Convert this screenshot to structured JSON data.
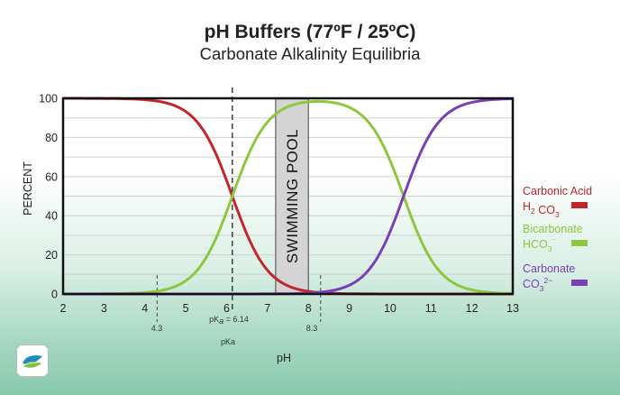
{
  "chart_data": {
    "type": "line",
    "title": "pH Buffers (77ºF / 25ºC)",
    "subtitle": "Carbonate Alkalinity Equilibria",
    "xlabel": "pH",
    "ylabel": "PERCENT",
    "xlim": [
      2,
      13
    ],
    "ylim": [
      0,
      100
    ],
    "x_ticks": [
      2,
      3,
      4,
      5,
      6,
      7,
      8,
      9,
      10,
      11,
      12,
      13
    ],
    "y_ticks": [
      0,
      20,
      40,
      60,
      80,
      100
    ],
    "grid": "horizontal",
    "pKa1": 6.14,
    "pKa2": 10.33,
    "series": [
      {
        "name": "Carbonic Acid",
        "formula": [
          "H",
          "2",
          " CO",
          "3"
        ],
        "color": "#c0272d",
        "species": "H2CO3"
      },
      {
        "name": "Bicarbonate",
        "formula": [
          "HCO",
          "3",
          "⁻",
          ""
        ],
        "color": "#8dc63f",
        "species": "HCO3"
      },
      {
        "name": "Carbonate",
        "formula": [
          "CO",
          "3",
          "2−",
          ""
        ],
        "color": "#7b3fb5",
        "species": "CO3"
      }
    ],
    "annotations": {
      "pool_label": "SWIMMING POOL",
      "pool_range": [
        7.2,
        8.0
      ],
      "pka_line_label": "pK",
      "pka_line_sub": "a",
      "pka_line_value": " = 6.14",
      "pka_label": "pKa",
      "marker_low": "4.3",
      "marker_low_x": 4.3,
      "marker_high": "8.3",
      "marker_high_x": 8.3
    }
  }
}
